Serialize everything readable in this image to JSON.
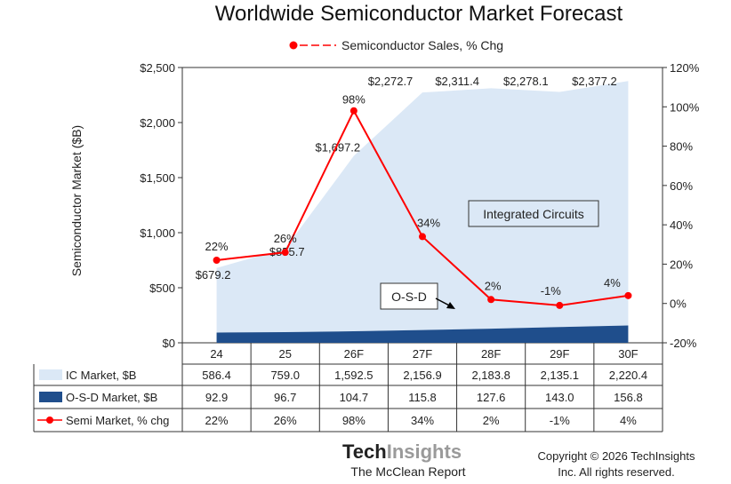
{
  "chart_data": {
    "type": "area",
    "title": "Worldwide Semiconductor Market Forecast",
    "ylabel": "Semiconductor Market ($B)",
    "ylim": [
      0,
      2500
    ],
    "y2lim": [
      -20,
      120
    ],
    "yticks": [
      "$0",
      "$500",
      "$1,000",
      "$1,500",
      "$2,000",
      "$2,500"
    ],
    "y2ticks": [
      "-20%",
      "0%",
      "20%",
      "40%",
      "60%",
      "80%",
      "100%",
      "120%"
    ],
    "categories": [
      "24",
      "25",
      "26F",
      "27F",
      "28F",
      "29F",
      "30F"
    ],
    "legend": "Semiconductor Sales, % Chg",
    "totals": [
      679.2,
      855.7,
      1697.2,
      2272.7,
      2311.4,
      2278.1,
      2377.2
    ],
    "total_labels": [
      "$679.2",
      "$855.7",
      "$1,697.2",
      "$2,272.7",
      "$2,311.4",
      "$2,278.1",
      "$2,377.2"
    ],
    "series": [
      {
        "name": "IC Market, $B",
        "axis": "left",
        "color": "#dbe8f6",
        "values": [
          586.4,
          759.0,
          1592.5,
          2156.9,
          2183.8,
          2135.1,
          2220.4
        ],
        "labels": [
          "586.4",
          "759.0",
          "1,592.5",
          "2,156.9",
          "2,183.8",
          "2,135.1",
          "2,220.4"
        ]
      },
      {
        "name": "O-S-D Market, $B",
        "axis": "left",
        "color": "#1f4e8c",
        "values": [
          92.9,
          96.7,
          104.7,
          115.8,
          127.6,
          143.0,
          156.8
        ],
        "labels": [
          "92.9",
          "96.7",
          "104.7",
          "115.8",
          "127.6",
          "143.0",
          "156.8"
        ]
      },
      {
        "name": "Semi Market, % chg",
        "axis": "right",
        "color": "#ff0000",
        "values": [
          22,
          26,
          98,
          34,
          2,
          -1,
          4
        ],
        "labels": [
          "22%",
          "26%",
          "98%",
          "34%",
          "2%",
          "-1%",
          "4%"
        ]
      }
    ],
    "annotations": {
      "ic": "Integrated Circuits",
      "osd": "O-S-D"
    }
  },
  "footer": {
    "brand_a": "Tech",
    "brand_b": "Insights",
    "report": "The McClean Report",
    "copyright_1": "Copyright © 2026 TechInsights",
    "copyright_2": "Inc.  All rights reserved."
  }
}
